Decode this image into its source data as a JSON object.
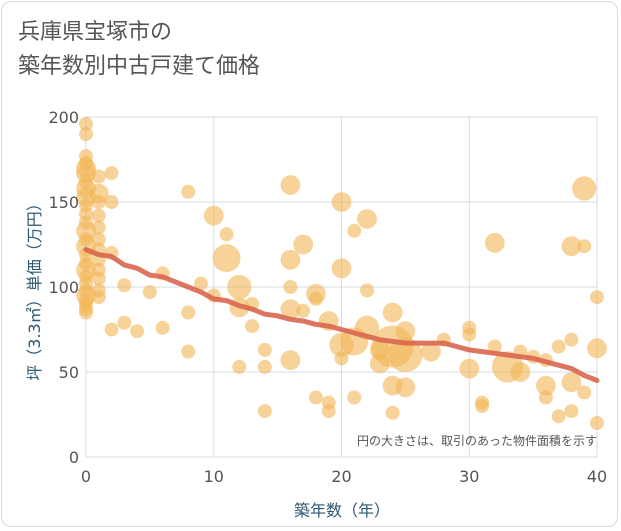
{
  "title": {
    "line1": "兵庫県宝塚市の",
    "line2": "築年数別中古戸建て価格"
  },
  "note": "円の大きさは、取引のあった物件面積を示す",
  "colors": {
    "bubble": "#f2b655",
    "trend": "#d9664f",
    "grid": "#d3dde5",
    "axis_text": "#2d5873"
  },
  "chart_data": {
    "type": "scatter",
    "title": "兵庫県宝塚市の築年数別中古戸建て価格",
    "xlabel": "築年数（年）",
    "ylabel": "坪（3.3㎡）単価（万円）",
    "xlim": [
      0,
      40
    ],
    "ylim": [
      0,
      200
    ],
    "x_ticks": [
      0,
      10,
      20,
      30,
      40
    ],
    "y_ticks": [
      0,
      50,
      100,
      150,
      200
    ],
    "grid": true,
    "bubbles": [
      {
        "x": 0,
        "y": 196,
        "s": 1
      },
      {
        "x": 0,
        "y": 190,
        "s": 1
      },
      {
        "x": 0,
        "y": 177,
        "s": 1
      },
      {
        "x": 0,
        "y": 173,
        "s": 1
      },
      {
        "x": 0,
        "y": 170,
        "s": 2
      },
      {
        "x": 0,
        "y": 167,
        "s": 2
      },
      {
        "x": 0,
        "y": 162,
        "s": 1
      },
      {
        "x": 0,
        "y": 158,
        "s": 2
      },
      {
        "x": 0,
        "y": 153,
        "s": 2
      },
      {
        "x": 0,
        "y": 148,
        "s": 1
      },
      {
        "x": 0,
        "y": 143,
        "s": 1
      },
      {
        "x": 0,
        "y": 138,
        "s": 1
      },
      {
        "x": 0,
        "y": 133,
        "s": 2
      },
      {
        "x": 0,
        "y": 128,
        "s": 1
      },
      {
        "x": 0,
        "y": 124,
        "s": 2
      },
      {
        "x": 0,
        "y": 119,
        "s": 1
      },
      {
        "x": 0,
        "y": 114,
        "s": 1
      },
      {
        "x": 0,
        "y": 110,
        "s": 2
      },
      {
        "x": 0,
        "y": 106,
        "s": 1
      },
      {
        "x": 0,
        "y": 102,
        "s": 1
      },
      {
        "x": 0,
        "y": 98,
        "s": 1
      },
      {
        "x": 0,
        "y": 95,
        "s": 2
      },
      {
        "x": 0,
        "y": 92,
        "s": 1
      },
      {
        "x": 0,
        "y": 90,
        "s": 1
      },
      {
        "x": 0,
        "y": 87,
        "s": 1
      },
      {
        "x": 0,
        "y": 85,
        "s": 1
      },
      {
        "x": 1,
        "y": 165,
        "s": 1
      },
      {
        "x": 1,
        "y": 155,
        "s": 2
      },
      {
        "x": 1,
        "y": 150,
        "s": 1
      },
      {
        "x": 1,
        "y": 142,
        "s": 1
      },
      {
        "x": 1,
        "y": 135,
        "s": 1
      },
      {
        "x": 1,
        "y": 128,
        "s": 1
      },
      {
        "x": 1,
        "y": 122,
        "s": 1
      },
      {
        "x": 1,
        "y": 116,
        "s": 1
      },
      {
        "x": 1,
        "y": 110,
        "s": 1
      },
      {
        "x": 1,
        "y": 105,
        "s": 1
      },
      {
        "x": 1,
        "y": 98,
        "s": 1
      },
      {
        "x": 1,
        "y": 94,
        "s": 1
      },
      {
        "x": 2,
        "y": 167,
        "s": 1
      },
      {
        "x": 2,
        "y": 150,
        "s": 1
      },
      {
        "x": 2,
        "y": 120,
        "s": 1
      },
      {
        "x": 2,
        "y": 75,
        "s": 1
      },
      {
        "x": 3,
        "y": 101,
        "s": 1
      },
      {
        "x": 3,
        "y": 79,
        "s": 1
      },
      {
        "x": 4,
        "y": 74,
        "s": 1
      },
      {
        "x": 5,
        "y": 97,
        "s": 1
      },
      {
        "x": 6,
        "y": 108,
        "s": 1
      },
      {
        "x": 6,
        "y": 76,
        "s": 1
      },
      {
        "x": 8,
        "y": 156,
        "s": 1
      },
      {
        "x": 8,
        "y": 85,
        "s": 1
      },
      {
        "x": 8,
        "y": 62,
        "s": 1
      },
      {
        "x": 9,
        "y": 102,
        "s": 1
      },
      {
        "x": 10,
        "y": 142,
        "s": 2
      },
      {
        "x": 10,
        "y": 95,
        "s": 1
      },
      {
        "x": 11,
        "y": 131,
        "s": 1
      },
      {
        "x": 11,
        "y": 117,
        "s": 4
      },
      {
        "x": 12,
        "y": 100,
        "s": 3
      },
      {
        "x": 12,
        "y": 88,
        "s": 2
      },
      {
        "x": 12,
        "y": 53,
        "s": 1
      },
      {
        "x": 13,
        "y": 90,
        "s": 1
      },
      {
        "x": 13,
        "y": 77,
        "s": 1
      },
      {
        "x": 14,
        "y": 63,
        "s": 1
      },
      {
        "x": 14,
        "y": 53,
        "s": 1
      },
      {
        "x": 14,
        "y": 27,
        "s": 1
      },
      {
        "x": 16,
        "y": 160,
        "s": 2
      },
      {
        "x": 16,
        "y": 116,
        "s": 2
      },
      {
        "x": 16,
        "y": 100,
        "s": 1
      },
      {
        "x": 16,
        "y": 87,
        "s": 2
      },
      {
        "x": 16,
        "y": 57,
        "s": 2
      },
      {
        "x": 17,
        "y": 125,
        "s": 2
      },
      {
        "x": 17,
        "y": 86,
        "s": 1
      },
      {
        "x": 18,
        "y": 96,
        "s": 2
      },
      {
        "x": 18,
        "y": 93,
        "s": 1
      },
      {
        "x": 18,
        "y": 35,
        "s": 1
      },
      {
        "x": 19,
        "y": 80,
        "s": 2
      },
      {
        "x": 19,
        "y": 32,
        "s": 1
      },
      {
        "x": 19,
        "y": 27,
        "s": 1
      },
      {
        "x": 20,
        "y": 150,
        "s": 2
      },
      {
        "x": 20,
        "y": 111,
        "s": 2
      },
      {
        "x": 20,
        "y": 66,
        "s": 3
      },
      {
        "x": 20,
        "y": 58,
        "s": 1
      },
      {
        "x": 21,
        "y": 133,
        "s": 1
      },
      {
        "x": 21,
        "y": 68,
        "s": 4
      },
      {
        "x": 21,
        "y": 35,
        "s": 1
      },
      {
        "x": 22,
        "y": 140,
        "s": 2
      },
      {
        "x": 22,
        "y": 98,
        "s": 1
      },
      {
        "x": 22,
        "y": 76,
        "s": 3
      },
      {
        "x": 23,
        "y": 63,
        "s": 2
      },
      {
        "x": 23,
        "y": 55,
        "s": 2
      },
      {
        "x": 24,
        "y": 85,
        "s": 2
      },
      {
        "x": 24,
        "y": 65,
        "s": 9
      },
      {
        "x": 24,
        "y": 42,
        "s": 2
      },
      {
        "x": 24,
        "y": 26,
        "s": 1
      },
      {
        "x": 25,
        "y": 74,
        "s": 2
      },
      {
        "x": 25,
        "y": 60,
        "s": 6
      },
      {
        "x": 25,
        "y": 41,
        "s": 2
      },
      {
        "x": 27,
        "y": 62,
        "s": 2
      },
      {
        "x": 28,
        "y": 69,
        "s": 1
      },
      {
        "x": 30,
        "y": 76,
        "s": 1
      },
      {
        "x": 30,
        "y": 72,
        "s": 1
      },
      {
        "x": 30,
        "y": 52,
        "s": 2
      },
      {
        "x": 31,
        "y": 32,
        "s": 1
      },
      {
        "x": 31,
        "y": 30,
        "s": 1
      },
      {
        "x": 32,
        "y": 126,
        "s": 2
      },
      {
        "x": 32,
        "y": 65,
        "s": 1
      },
      {
        "x": 33,
        "y": 53,
        "s": 5
      },
      {
        "x": 34,
        "y": 50,
        "s": 2
      },
      {
        "x": 34,
        "y": 62,
        "s": 1
      },
      {
        "x": 35,
        "y": 59,
        "s": 1
      },
      {
        "x": 36,
        "y": 57,
        "s": 1
      },
      {
        "x": 36,
        "y": 42,
        "s": 2
      },
      {
        "x": 36,
        "y": 35,
        "s": 1
      },
      {
        "x": 37,
        "y": 65,
        "s": 1
      },
      {
        "x": 37,
        "y": 24,
        "s": 1
      },
      {
        "x": 38,
        "y": 124,
        "s": 2
      },
      {
        "x": 38,
        "y": 69,
        "s": 1
      },
      {
        "x": 38,
        "y": 44,
        "s": 2
      },
      {
        "x": 38,
        "y": 27,
        "s": 1
      },
      {
        "x": 39,
        "y": 158,
        "s": 3
      },
      {
        "x": 39,
        "y": 124,
        "s": 1
      },
      {
        "x": 39,
        "y": 38,
        "s": 1
      },
      {
        "x": 40,
        "y": 94,
        "s": 1
      },
      {
        "x": 40,
        "y": 64,
        "s": 2
      },
      {
        "x": 40,
        "y": 20,
        "s": 1
      }
    ],
    "trend": {
      "x": [
        0,
        1,
        2,
        3,
        4,
        5,
        6,
        7,
        8,
        9,
        10,
        11,
        12,
        13,
        14,
        15,
        16,
        17,
        18,
        19,
        20,
        21,
        22,
        23,
        24,
        25,
        26,
        27,
        28,
        29,
        30,
        31,
        32,
        33,
        34,
        35,
        36,
        37,
        38,
        39,
        40
      ],
      "y": [
        122,
        119,
        118,
        113,
        111,
        107,
        106,
        103,
        100,
        97,
        93,
        92,
        89,
        87,
        84,
        83,
        81,
        80,
        78,
        77,
        75,
        73,
        71,
        69,
        68,
        67,
        67,
        67,
        67,
        65,
        63,
        62,
        61,
        60,
        59,
        58,
        56,
        54,
        52,
        48,
        45
      ]
    }
  }
}
